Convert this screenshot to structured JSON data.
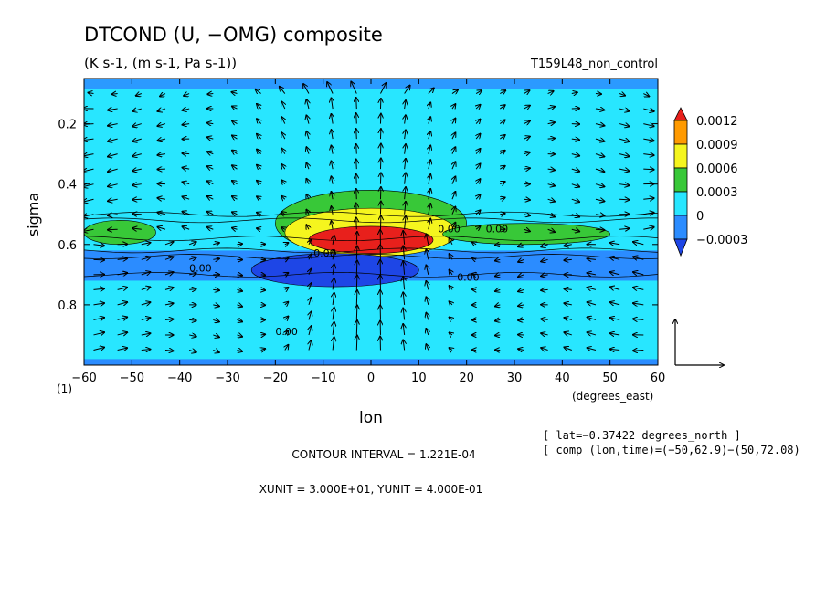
{
  "chart_data": {
    "type": "heatmap",
    "title": "DTCOND (U, −OMG) composite",
    "subtitle": "(K s-1, (m s-1, Pa s-1))",
    "run_label": "T159L48_non_control",
    "xlabel": "lon",
    "x_units": "(degrees_east)",
    "ylabel": "sigma",
    "y_corner_label": "(1)",
    "x_ticks": [
      "−60",
      "−50",
      "−40",
      "−30",
      "−20",
      "−10",
      "0",
      "10",
      "20",
      "30",
      "40",
      "50",
      "60"
    ],
    "x_tick_values": [
      -60,
      -50,
      -40,
      -30,
      -20,
      -10,
      0,
      10,
      20,
      30,
      40,
      50,
      60
    ],
    "y_ticks": [
      "0.2",
      "0.4",
      "0.6",
      "0.8"
    ],
    "y_tick_values": [
      0.2,
      0.4,
      0.6,
      0.8
    ],
    "xlim": [
      -60,
      60
    ],
    "ylim": [
      0.05,
      1.0
    ],
    "y_inverted": true,
    "colorbar": {
      "labels": [
        "0.0012",
        "0.0009",
        "0.0006",
        "0.0003",
        "0",
        "−0.0003"
      ],
      "level_values": [
        0.0012,
        0.0009,
        0.0006,
        0.0003,
        0,
        -0.0003
      ],
      "colors": [
        "#e8201c",
        "#ff9a00",
        "#f5f51e",
        "#38c838",
        "#28e6ff",
        "#2b8cff",
        "#1e46e6"
      ]
    },
    "contour_labels": [
      "0.00",
      "0.00",
      "0.00",
      "0.00",
      "0.00",
      "0.00"
    ],
    "info_lines": [
      "[ lat=−0.37422 degrees_north ]",
      "[ comp (lon,time)=(−50,62.9)−(50,72.08)"
    ],
    "contour_interval": "CONTOUR INTERVAL = 1.221E-04",
    "units_line": "XUNIT = 3.000E+01, YUNIT = 4.000E-01",
    "regions": [
      {
        "level": 0.0012,
        "lon_min": -13,
        "lon_max": 13,
        "sigma_min": 0.54,
        "sigma_max": 0.63
      },
      {
        "level": 0.0006,
        "lon_min": -18,
        "lon_max": 18,
        "sigma_min": 0.48,
        "sigma_max": 0.64
      },
      {
        "level": 0.0003,
        "lon_min": -20,
        "lon_max": 20,
        "sigma_min": 0.42,
        "sigma_max": 0.64
      },
      {
        "level": 0.0003,
        "lon_min": 15,
        "lon_max": 50,
        "sigma_min": 0.53,
        "sigma_max": 0.6
      },
      {
        "level": 0.0003,
        "lon_min": -60,
        "lon_max": -45,
        "sigma_min": 0.52,
        "sigma_max": 0.6
      },
      {
        "level": -0.0003,
        "lon_min": -60,
        "lon_max": 60,
        "sigma_min": 0.62,
        "sigma_max": 0.72
      },
      {
        "level": -0.0006,
        "lon_min": -25,
        "lon_max": 10,
        "sigma_min": 0.63,
        "sigma_max": 0.74
      }
    ]
  }
}
